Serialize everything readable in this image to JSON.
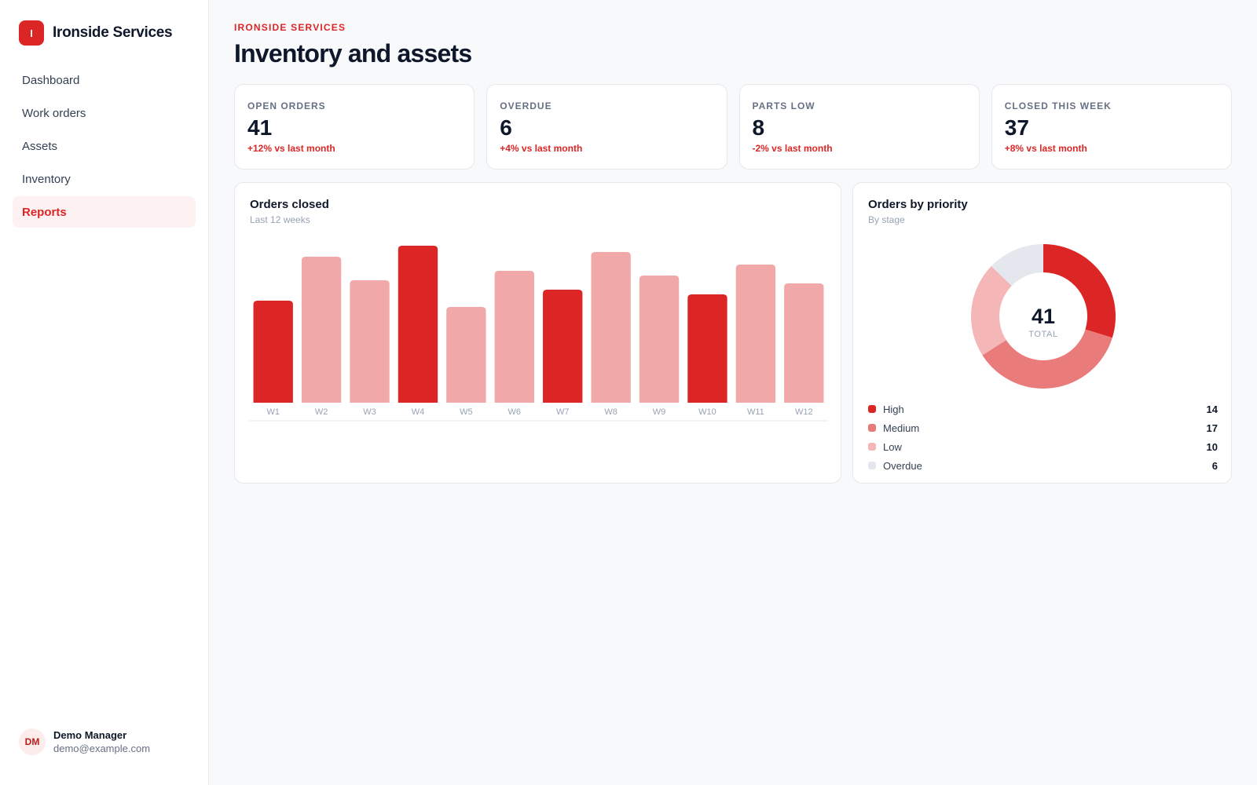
{
  "brand": {
    "logo_letter": "I",
    "name": "Ironside Services",
    "accent": "#dc2626"
  },
  "sidebar": {
    "items": [
      {
        "label": "Dashboard",
        "active": false
      },
      {
        "label": "Work orders",
        "active": false
      },
      {
        "label": "Assets",
        "active": false
      },
      {
        "label": "Inventory",
        "active": false
      },
      {
        "label": "Reports",
        "active": true
      }
    ]
  },
  "user": {
    "initials": "DM",
    "name": "Demo Manager",
    "email": "demo@example.com"
  },
  "header": {
    "eyebrow": "IRONSIDE SERVICES",
    "title": "Inventory and assets"
  },
  "stats": [
    {
      "label": "OPEN ORDERS",
      "value": "41",
      "delta": "+12% vs last month"
    },
    {
      "label": "OVERDUE",
      "value": "6",
      "delta": "+4% vs last month"
    },
    {
      "label": "PARTS LOW",
      "value": "8",
      "delta": "-2% vs last month"
    },
    {
      "label": "CLOSED THIS WEEK",
      "value": "37",
      "delta": "+8% vs last month"
    }
  ],
  "orders_closed": {
    "title": "Orders closed",
    "subtitle": "Last 12 weeks"
  },
  "orders_by_priority": {
    "title": "Orders by priority",
    "subtitle": "By stage",
    "total_value": "41",
    "total_label": "TOTAL"
  },
  "chart_data": [
    {
      "type": "bar",
      "title": "Orders closed",
      "subtitle": "Last 12 weeks",
      "categories": [
        "W1",
        "W2",
        "W3",
        "W4",
        "W5",
        "W6",
        "W7",
        "W8",
        "W9",
        "W10",
        "W11",
        "W12"
      ],
      "values": [
        65,
        93,
        78,
        100,
        61,
        84,
        72,
        96,
        81,
        69,
        88,
        76
      ],
      "highlighted": [
        true,
        false,
        false,
        true,
        false,
        false,
        true,
        false,
        false,
        true,
        false,
        false
      ],
      "colors": {
        "highlight": "#dc2626",
        "normal": "#f0a8a8"
      },
      "ylim": [
        0,
        100
      ],
      "grid": false
    },
    {
      "type": "pie",
      "variant": "donut",
      "title": "Orders by priority",
      "subtitle": "By stage",
      "center_value": "41",
      "center_label": "TOTAL",
      "slices": [
        {
          "label": "High",
          "value": 14,
          "color": "#dc2626"
        },
        {
          "label": "Medium",
          "value": 17,
          "color": "#ea7b7b"
        },
        {
          "label": "Low",
          "value": 10,
          "color": "#f4b6b6"
        },
        {
          "label": "Overdue",
          "value": 6,
          "color": "#e4e7ed"
        }
      ]
    }
  ]
}
